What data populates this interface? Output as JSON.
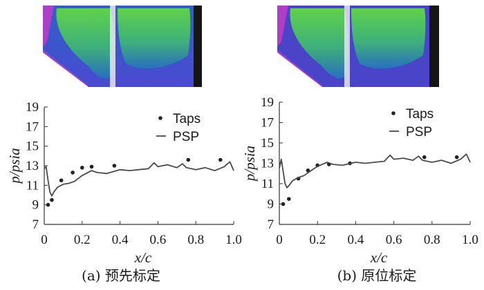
{
  "colors": {
    "axis": "#333333",
    "marker": "#222222",
    "psp_line": "#4a4a4a",
    "psp_green": "#6fd34a",
    "psp_blue": "#3c5cc8",
    "psp_magenta": "#c03cc8",
    "psp_dark": "#151515"
  },
  "chart_data": [
    {
      "type": "scatter+line",
      "panel_index": 0,
      "caption": "(a)  预先标定",
      "xlabel": "x/c",
      "ylabel": "p/psia",
      "xlim": [
        0,
        1.0
      ],
      "ylim": [
        7,
        19
      ],
      "xticks": [
        "0",
        "0.2",
        "0.4",
        "0.6",
        "0.8",
        "1.0"
      ],
      "yticks": [
        "7",
        "9",
        "11",
        "13",
        "15",
        "17",
        "19"
      ],
      "legend": [
        "Taps",
        "PSP"
      ],
      "series": [
        {
          "name": "Taps",
          "kind": "scatter",
          "x": [
            0.02,
            0.04,
            0.09,
            0.15,
            0.2,
            0.25,
            0.37,
            0.76,
            0.93
          ],
          "y": [
            9.0,
            9.5,
            11.5,
            12.3,
            12.8,
            12.9,
            13.0,
            13.6,
            13.6
          ]
        },
        {
          "name": "PSP",
          "kind": "line",
          "x": [
            0.0,
            0.01,
            0.02,
            0.03,
            0.04,
            0.05,
            0.07,
            0.1,
            0.13,
            0.16,
            0.2,
            0.25,
            0.28,
            0.33,
            0.4,
            0.45,
            0.5,
            0.55,
            0.58,
            0.6,
            0.65,
            0.7,
            0.73,
            0.75,
            0.8,
            0.85,
            0.9,
            0.95,
            0.98,
            1.0
          ],
          "y": [
            12.7,
            12.9,
            11.5,
            10.3,
            9.9,
            10.3,
            10.8,
            11.1,
            11.2,
            11.4,
            12.0,
            12.5,
            12.3,
            12.2,
            12.6,
            12.5,
            12.6,
            12.7,
            13.3,
            12.9,
            13.1,
            12.8,
            13.2,
            12.8,
            12.6,
            12.8,
            12.5,
            12.9,
            13.4,
            12.5
          ]
        }
      ]
    },
    {
      "type": "scatter+line",
      "panel_index": 1,
      "caption": "(b)  原位标定",
      "xlabel": "x/c",
      "ylabel": "p/psia",
      "xlim": [
        0,
        1.0
      ],
      "ylim": [
        7,
        19
      ],
      "xticks": [
        "0",
        "0.2",
        "0.4",
        "0.6",
        "0.8",
        "1.0"
      ],
      "yticks": [
        "7",
        "9",
        "11",
        "13",
        "15",
        "17",
        "19"
      ],
      "legend": [
        "Taps",
        "PSP"
      ],
      "series": [
        {
          "name": "Taps",
          "kind": "scatter",
          "x": [
            0.02,
            0.05,
            0.1,
            0.15,
            0.2,
            0.26,
            0.37,
            0.76,
            0.93
          ],
          "y": [
            9.0,
            9.5,
            11.5,
            12.3,
            12.8,
            12.9,
            13.0,
            13.6,
            13.6
          ]
        },
        {
          "name": "PSP",
          "kind": "line",
          "x": [
            0.0,
            0.01,
            0.02,
            0.03,
            0.04,
            0.05,
            0.07,
            0.1,
            0.13,
            0.16,
            0.2,
            0.25,
            0.28,
            0.33,
            0.4,
            0.45,
            0.5,
            0.55,
            0.58,
            0.6,
            0.65,
            0.7,
            0.73,
            0.75,
            0.8,
            0.85,
            0.9,
            0.95,
            0.98,
            1.0
          ],
          "y": [
            12.5,
            13.4,
            12.2,
            11.0,
            10.6,
            10.8,
            11.3,
            11.6,
            11.8,
            12.2,
            12.7,
            13.1,
            12.9,
            12.8,
            13.1,
            13.0,
            13.1,
            13.2,
            13.8,
            13.4,
            13.5,
            13.3,
            13.7,
            13.3,
            13.1,
            13.3,
            13.0,
            13.4,
            13.9,
            13.1
          ]
        }
      ]
    }
  ]
}
